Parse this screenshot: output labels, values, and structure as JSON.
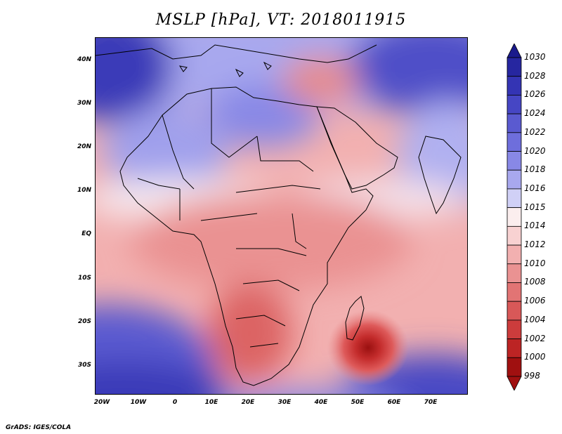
{
  "title": "MSLP [hPa], VT: 2018011915",
  "footer": "GrADS: IGES/COLA",
  "map": {
    "lon_range": [
      -25,
      80
    ],
    "lat_range": [
      -37,
      45
    ],
    "lat_labels": [
      "40N",
      "30N",
      "20N",
      "10N",
      "EQ",
      "10S",
      "20S",
      "30S"
    ],
    "lon_labels": [
      "20W",
      "10W",
      "0",
      "10E",
      "20E",
      "30E",
      "40E",
      "50E",
      "60E",
      "70E"
    ],
    "low_center": {
      "lon": 52,
      "lat": -26,
      "value_hpa": 998
    },
    "high_center": {
      "lon": -20,
      "lat": 42,
      "value_hpa": 1030
    }
  },
  "colorbar": {
    "levels": [
      "1030",
      "1028",
      "1026",
      "1024",
      "1022",
      "1020",
      "1018",
      "1016",
      "1015",
      "1014",
      "1012",
      "1010",
      "1008",
      "1006",
      "1004",
      "1002",
      "1000",
      "998"
    ],
    "colors": {
      "c1030": "#1a1a8c",
      "c1028": "#2626a0",
      "c1026": "#3434b4",
      "c1024": "#4646c4",
      "c1022": "#5a5ad0",
      "c1020": "#6e6edc",
      "c1018": "#8888e6",
      "c1016": "#a8a8ee",
      "c1015": "#d0d0f6",
      "c1014": "#fbeeee",
      "c1012": "#f8d2d2",
      "c1010": "#f2b0b0",
      "c1008": "#ea9292",
      "c1006": "#e27474",
      "c1004": "#d85858",
      "c1002": "#cc3c3c",
      "c1000": "#bc2424",
      "c998": "#a01010"
    }
  }
}
